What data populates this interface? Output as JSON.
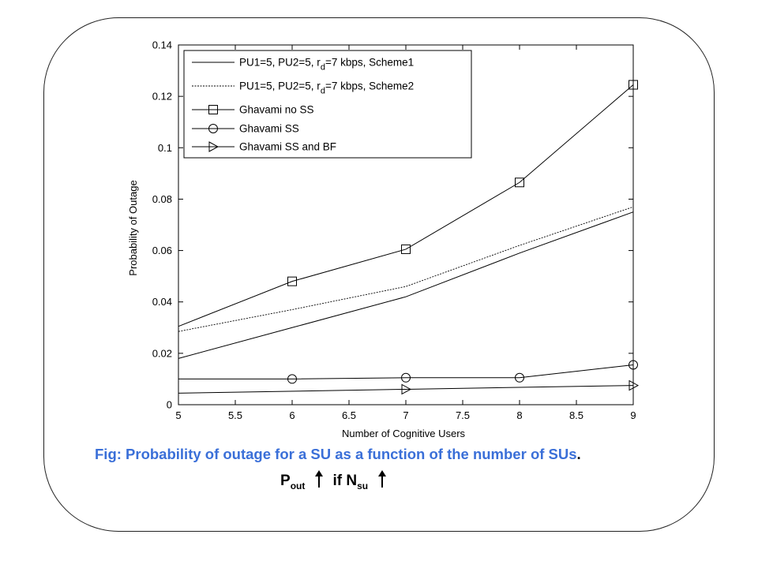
{
  "chart_data": {
    "type": "line",
    "xlabel": "Number of Cognitive Users",
    "ylabel": "Probability of Outage",
    "xlim": [
      5,
      9
    ],
    "ylim": [
      0,
      0.14
    ],
    "xticks": [
      "5",
      "5.5",
      "6",
      "6.5",
      "7",
      "7.5",
      "8",
      "8.5",
      "9"
    ],
    "yticks": [
      "0",
      "0.02",
      "0.04",
      "0.06",
      "0.08",
      "0.1",
      "0.12",
      "0.14"
    ],
    "grid": false,
    "legend_position": "top-left",
    "series": [
      {
        "name_parts": [
          "PU1=5, PU2=5, r",
          "d",
          "=7 kbps, Scheme1"
        ],
        "style": "solid",
        "marker": "none",
        "x": [
          5,
          6,
          7,
          8,
          9
        ],
        "y": [
          0.018,
          0.03,
          0.042,
          0.059,
          0.075
        ]
      },
      {
        "name_parts": [
          "PU1=5, PU2=5, r",
          "d",
          "=7 kbps, Scheme2"
        ],
        "style": "dotted",
        "marker": "none",
        "x": [
          5,
          6,
          7,
          8,
          9
        ],
        "y": [
          0.0285,
          0.037,
          0.046,
          0.062,
          0.077
        ]
      },
      {
        "name": "Ghavami no SS",
        "style": "solid",
        "marker": "square",
        "x": [
          5,
          6,
          7,
          8,
          9
        ],
        "y": [
          0.0305,
          0.048,
          0.0605,
          0.0865,
          0.1245
        ]
      },
      {
        "name": "Ghavami SS",
        "style": "solid",
        "marker": "circle",
        "x": [
          5,
          6,
          7,
          8,
          9
        ],
        "y": [
          0.01,
          0.01,
          0.0105,
          0.0105,
          0.0155
        ]
      },
      {
        "name": "Ghavami SS and BF",
        "style": "solid",
        "marker": "triangle",
        "x": [
          5,
          7,
          9
        ],
        "y": [
          0.0045,
          0.006,
          0.0075
        ]
      }
    ]
  },
  "caption": {
    "text": "Fig:  Probability of outage for a SU as a function of the number of SUs",
    "period": "."
  },
  "formula": {
    "p": "P",
    "p_sub": "out",
    "if_text": "if  N",
    "n_sub": "su"
  }
}
